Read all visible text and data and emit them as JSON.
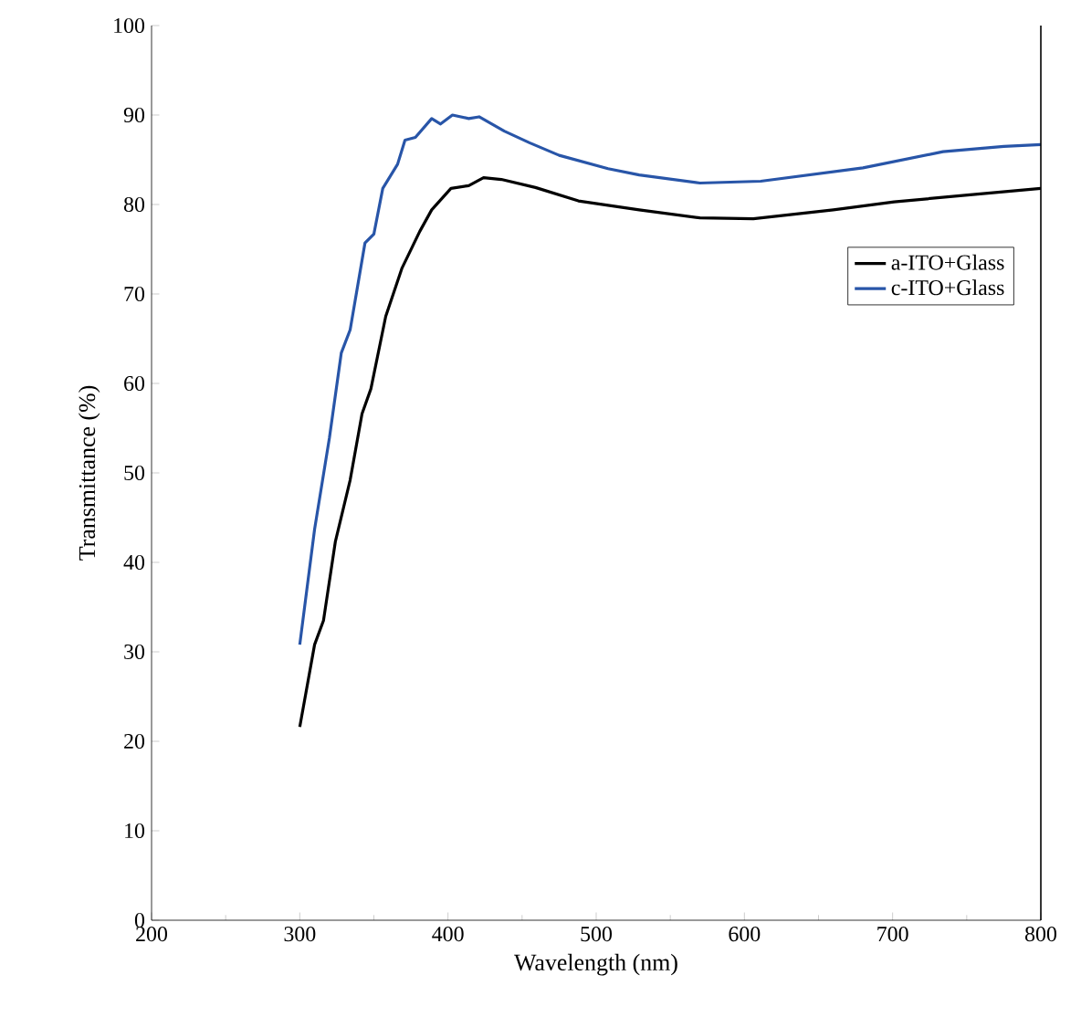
{
  "chart_data": {
    "type": "line",
    "xlabel": "Wavelength (nm)",
    "ylabel": "Transmittance (%)",
    "xlim": [
      200,
      800
    ],
    "ylim": [
      0,
      100
    ],
    "xticks": [
      200,
      300,
      400,
      500,
      600,
      700,
      800
    ],
    "yticks": [
      0,
      10,
      20,
      30,
      40,
      50,
      60,
      70,
      80,
      90,
      100
    ],
    "legend": "right",
    "grid": false,
    "series": [
      {
        "name": "a-ITO+Glass",
        "color": "#000000",
        "x": [
          300,
          310,
          316,
          324,
          334,
          342,
          348,
          358,
          369,
          381,
          389,
          402,
          414,
          424,
          436,
          459,
          488,
          529,
          570,
          606,
          660,
          701,
          754,
          800
        ],
        "values": [
          21.6,
          30.8,
          33.5,
          42.3,
          49.2,
          56.6,
          59.4,
          67.5,
          72.9,
          77,
          79.4,
          81.8,
          82.1,
          83,
          82.8,
          81.9,
          80.4,
          79.4,
          78.5,
          78.4,
          79.4,
          80.3,
          81.1,
          81.8
        ]
      },
      {
        "name": "c-ITO+Glass",
        "color": "#2855a8",
        "x": [
          300,
          310,
          320,
          328,
          334,
          344,
          350,
          356,
          366,
          371,
          378,
          389,
          395,
          403,
          414,
          421,
          438,
          455,
          475,
          508,
          529,
          570,
          611,
          680,
          734,
          775,
          800
        ],
        "values": [
          30.8,
          43.7,
          53.9,
          63.4,
          66,
          75.7,
          76.7,
          81.8,
          84.5,
          87.2,
          87.5,
          89.6,
          89,
          90,
          89.6,
          89.8,
          88.2,
          86.9,
          85.5,
          84,
          83.3,
          82.4,
          82.6,
          84.1,
          85.9,
          86.5,
          86.7
        ]
      }
    ]
  }
}
